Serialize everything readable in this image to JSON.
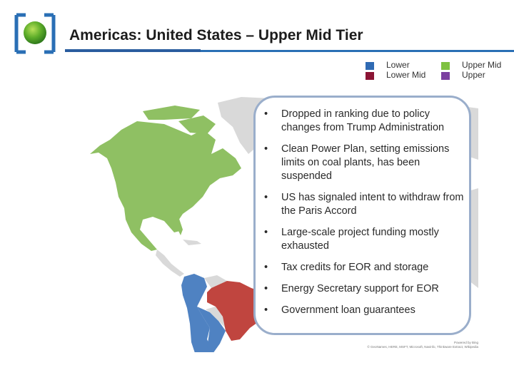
{
  "header": {
    "title": "Americas: United States – Upper Mid Tier"
  },
  "legend": {
    "items": [
      {
        "label": "Lower",
        "color": "#2f6ab3"
      },
      {
        "label": "Lower Mid",
        "color": "#8b1434"
      },
      {
        "label": "Upper Mid",
        "color": "#7fc241"
      },
      {
        "label": "Upper",
        "color": "#7b3fa0"
      }
    ]
  },
  "map": {
    "colors": {
      "north_america": "#8fc063",
      "brazil": "#c0453f",
      "andean": "#4f82c2",
      "other": "#d9d9d9"
    }
  },
  "callout": {
    "bullet": "•",
    "items": [
      "Dropped in ranking due to policy changes from Trump Administration",
      "Clean Power Plan, setting emissions limits on coal plants, has been suspended",
      "US has signaled intent to withdraw from the Paris Accord",
      "Large-scale project funding mostly exhausted",
      "Tax credits for EOR and storage",
      "Energy Secretary support for EOR",
      "Government loan guarantees"
    ]
  },
  "map_credit": {
    "line1": "Powered by Bing",
    "line2": "© GeoNames, HERE, MSFT, Microsoft, Navinfo, Thinkware Extract, Wikipedia"
  }
}
